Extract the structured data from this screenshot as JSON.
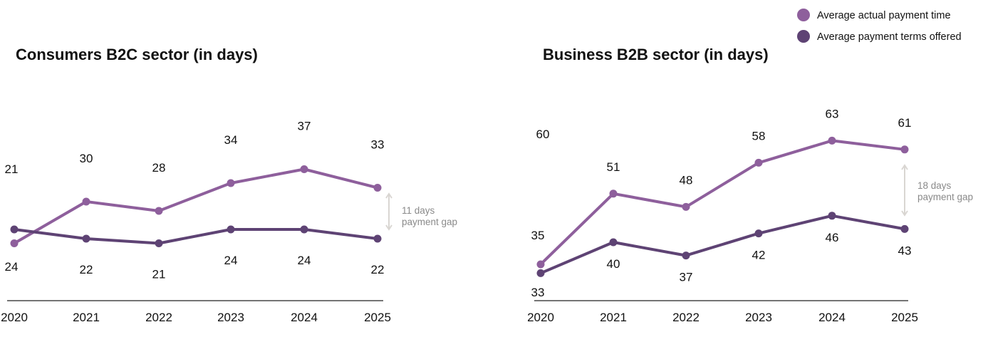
{
  "legend": [
    {
      "label": "Average actual payment time",
      "color": "#8E5F9C"
    },
    {
      "label": "Average payment terms offered",
      "color": "#5E4374"
    }
  ],
  "chart_data": [
    {
      "type": "line",
      "title": "Consumers B2C sector (in days)",
      "categories": [
        "2020",
        "2021",
        "2022",
        "2023",
        "2024",
        "2025"
      ],
      "series": [
        {
          "name": "Average actual payment time",
          "values": [
            21,
            30,
            28,
            34,
            37,
            33
          ],
          "color": "#8E5F9C"
        },
        {
          "name": "Average payment terms offered",
          "values": [
            24,
            22,
            21,
            24,
            24,
            22
          ],
          "color": "#5E4374"
        }
      ],
      "annotation": {
        "line1": "11 days",
        "line2": "payment gap"
      },
      "grid": false
    },
    {
      "type": "line",
      "title": "Business B2B sector (in days)",
      "categories": [
        "2020",
        "2021",
        "2022",
        "2023",
        "2024",
        "2025"
      ],
      "series": [
        {
          "name": "Average actual payment time",
          "values": [
            35,
            51,
            48,
            58,
            63,
            61
          ],
          "color": "#8E5F9C"
        },
        {
          "name": "Average payment terms offered",
          "values": [
            33,
            40,
            37,
            42,
            46,
            43
          ],
          "color": "#5E4374"
        }
      ],
      "extra_labels": [
        "60"
      ],
      "annotation": {
        "line1": "18 days",
        "line2": "payment gap"
      },
      "grid": false
    }
  ]
}
